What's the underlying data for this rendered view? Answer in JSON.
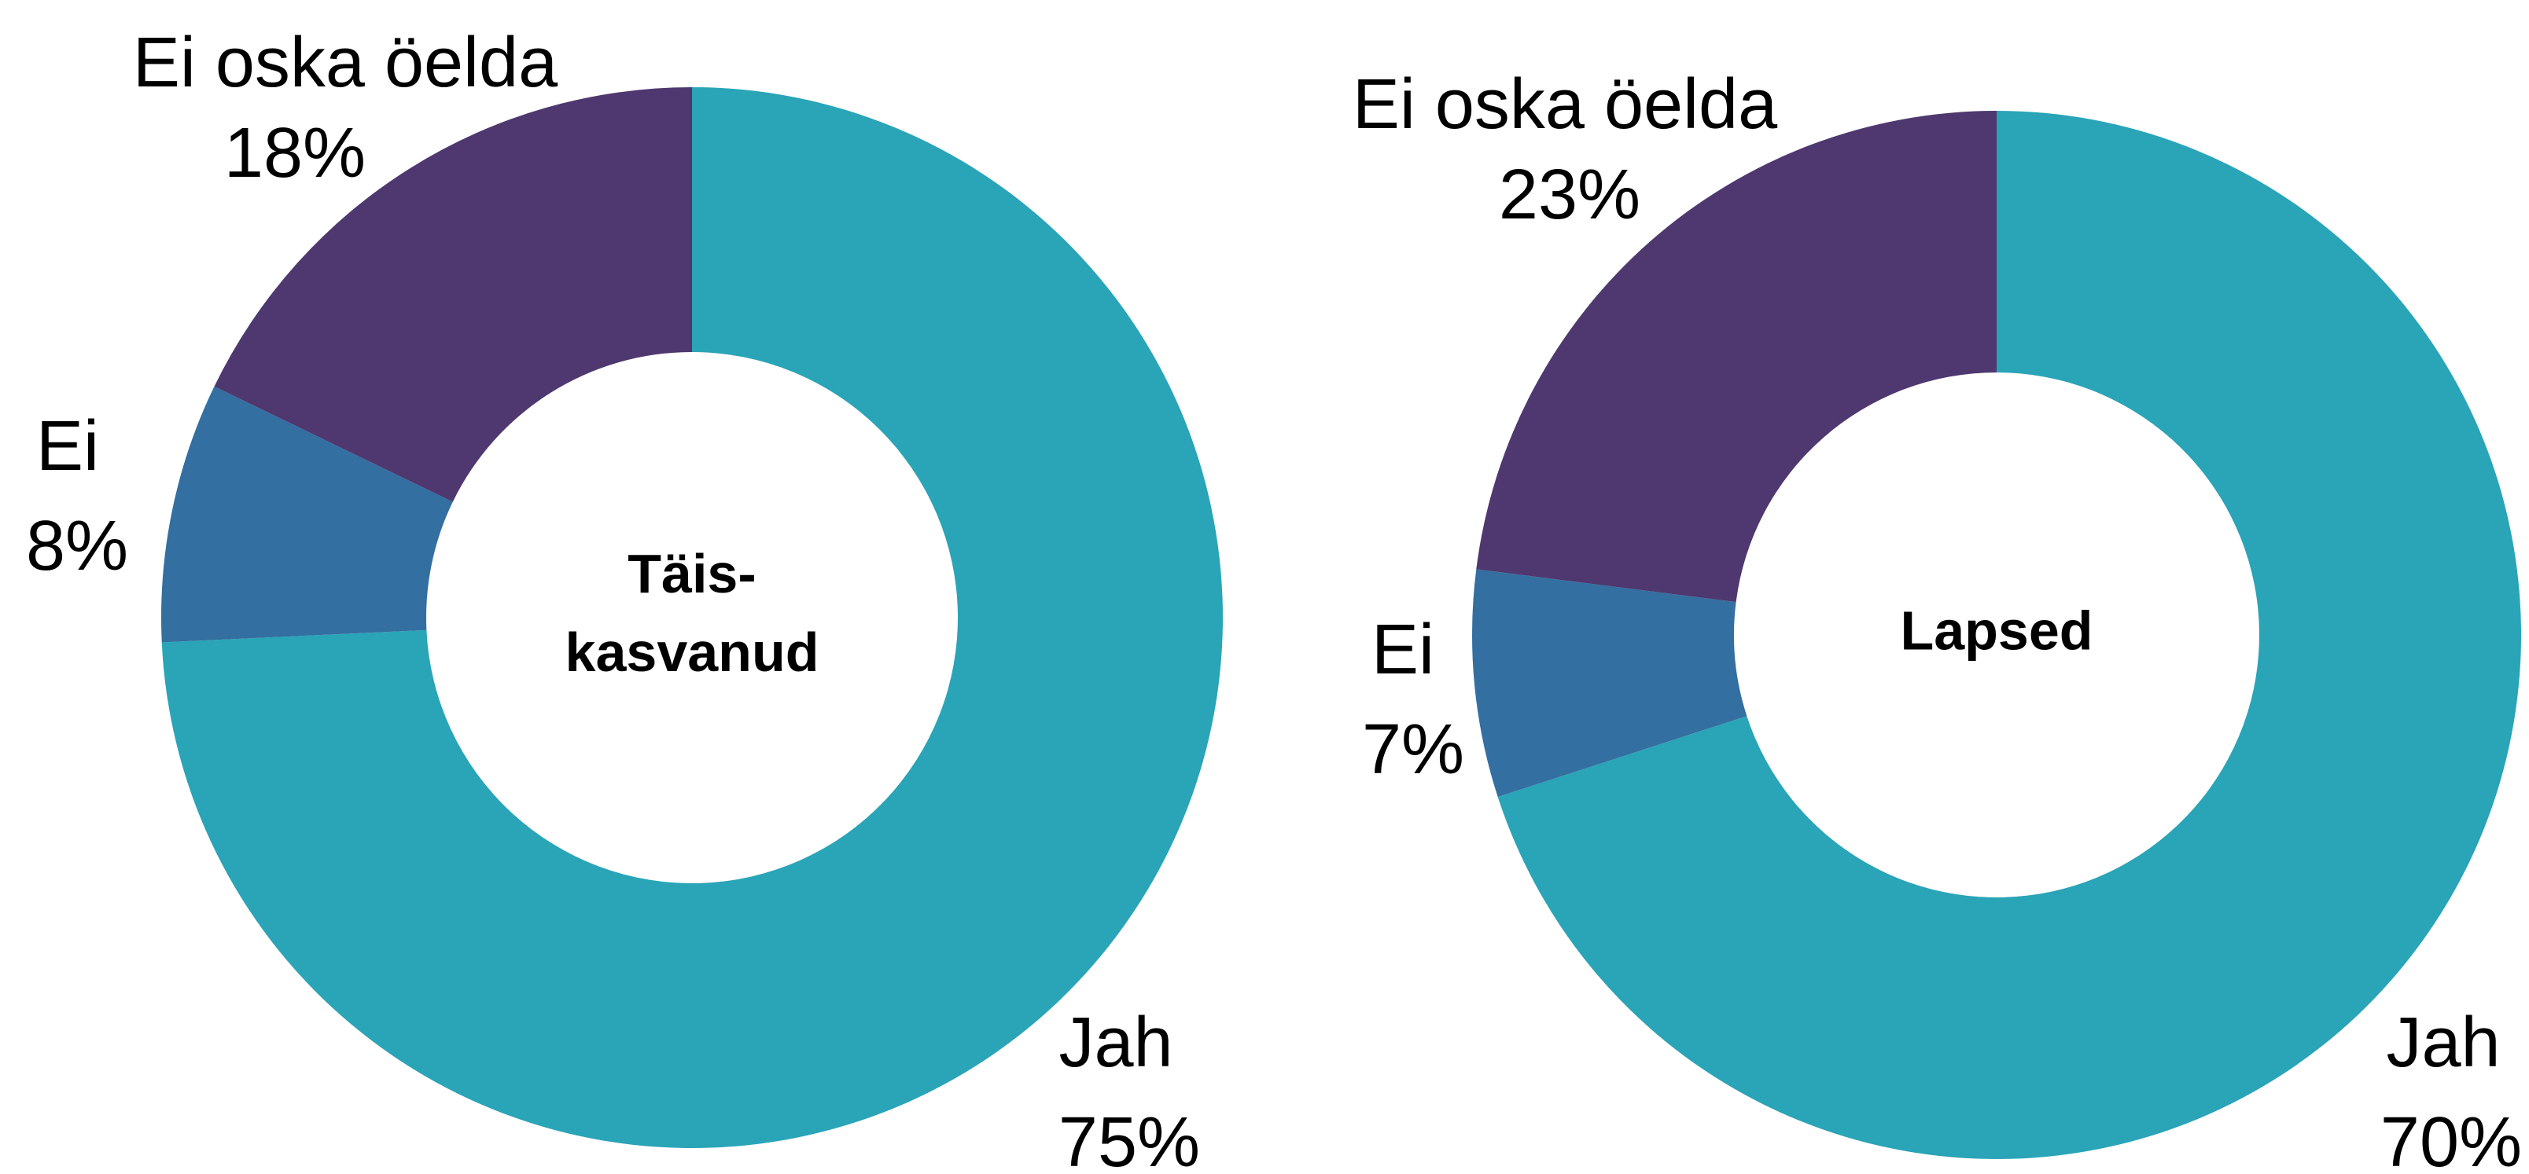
{
  "chart_data": [
    {
      "type": "donut",
      "title": "Täis- kasvanud",
      "categories": [
        "Jah",
        "Ei",
        "Ei oska öelda"
      ],
      "values": [
        75,
        8,
        18
      ],
      "value_labels": [
        "75%",
        "8%",
        "18%"
      ],
      "colors": [
        "#2aa4b7",
        "#336fa0",
        "#4e386f"
      ]
    },
    {
      "type": "donut",
      "title": "Lapsed",
      "categories": [
        "Jah",
        "Ei",
        "Ei oska öelda"
      ],
      "values": [
        70,
        7,
        23
      ],
      "value_labels": [
        "70%",
        "7%",
        "23%"
      ],
      "colors": [
        "#2aa4b7",
        "#336fa0",
        "#4e386f"
      ]
    }
  ]
}
